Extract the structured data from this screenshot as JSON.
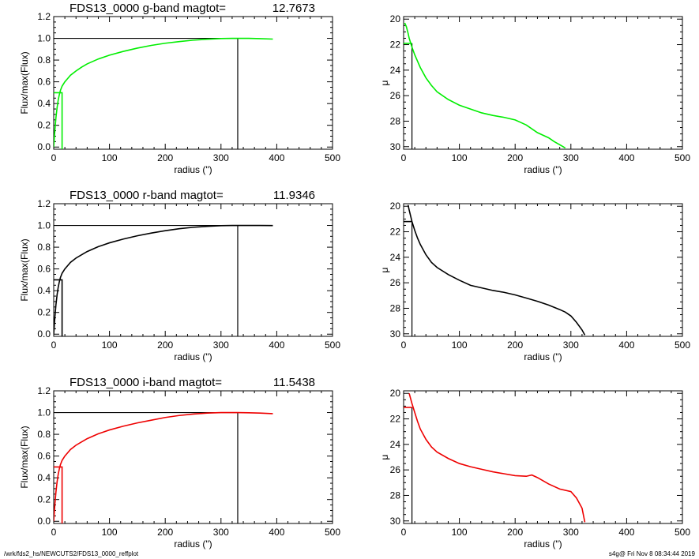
{
  "footer": {
    "left": "/wrk/fds2_hs/NEWCUTS2/FDS13_0000_reffplot",
    "right": "s4g@  Fri Nov  8 08:34:44 2019"
  },
  "chart_data": [
    {
      "type": "line",
      "title": "FDS13_0000 g-band  magtot=",
      "title_value": "12.7673",
      "xlabel": "radius (\")",
      "ylabel": "Flux/max(Flux)",
      "xlim": [
        0,
        500
      ],
      "ylim": [
        -0.02,
        1.2
      ],
      "xticks": [
        0,
        100,
        200,
        300,
        400,
        500
      ],
      "yticks": [
        0.0,
        0.2,
        0.4,
        0.6,
        0.8,
        1.0,
        1.2
      ],
      "color": "#00ee00",
      "x": [
        0,
        2,
        4,
        6,
        8,
        10,
        12,
        15,
        20,
        25,
        30,
        40,
        50,
        60,
        80,
        100,
        125,
        150,
        175,
        200,
        225,
        250,
        275,
        300,
        320,
        330,
        350,
        370,
        393
      ],
      "y": [
        0,
        0.15,
        0.27,
        0.36,
        0.43,
        0.48,
        0.52,
        0.56,
        0.6,
        0.63,
        0.66,
        0.7,
        0.735,
        0.765,
        0.81,
        0.845,
        0.88,
        0.91,
        0.935,
        0.955,
        0.97,
        0.983,
        0.992,
        0.998,
        1.0,
        1.0,
        1.0,
        0.997,
        0.993
      ],
      "half_light_radius": 15,
      "total_radius": 330
    },
    {
      "type": "line",
      "xlabel": "radius (\")",
      "ylabel": "μ",
      "xlim": [
        0,
        500
      ],
      "ylim": [
        30.2,
        19.8
      ],
      "ylog": false,
      "xticks": [
        0,
        100,
        200,
        300,
        400,
        500
      ],
      "yticks": [
        20,
        22,
        24,
        26,
        28,
        30
      ],
      "color": "#00ee00",
      "x": [
        2,
        5,
        8,
        10,
        15,
        20,
        25,
        30,
        40,
        50,
        60,
        80,
        100,
        120,
        140,
        160,
        180,
        200,
        210,
        220,
        230,
        240,
        250,
        260,
        270,
        280,
        290
      ],
      "y": [
        20.3,
        20.6,
        21.1,
        21.5,
        22.2,
        22.8,
        23.3,
        23.8,
        24.6,
        25.2,
        25.7,
        26.3,
        26.75,
        27.05,
        27.35,
        27.55,
        27.7,
        27.9,
        28.1,
        28.3,
        28.6,
        28.9,
        29.1,
        29.3,
        29.6,
        29.85,
        30.1
      ],
      "marker_radius": 15,
      "marker_mu": 21.9
    },
    {
      "type": "line",
      "title": "FDS13_0000 r-band  magtot=",
      "title_value": "11.9346",
      "xlabel": "radius (\")",
      "ylabel": "Flux/max(Flux)",
      "xlim": [
        0,
        500
      ],
      "ylim": [
        -0.02,
        1.2
      ],
      "xticks": [
        0,
        100,
        200,
        300,
        400,
        500
      ],
      "yticks": [
        0.0,
        0.2,
        0.4,
        0.6,
        0.8,
        1.0,
        1.2
      ],
      "color": "#000000",
      "x": [
        0,
        2,
        4,
        6,
        8,
        10,
        12,
        15,
        20,
        25,
        30,
        40,
        50,
        60,
        80,
        100,
        125,
        150,
        175,
        200,
        225,
        250,
        275,
        300,
        320,
        330,
        350,
        370,
        393
      ],
      "y": [
        0,
        0.15,
        0.27,
        0.36,
        0.43,
        0.48,
        0.52,
        0.56,
        0.6,
        0.63,
        0.66,
        0.7,
        0.73,
        0.76,
        0.805,
        0.84,
        0.875,
        0.905,
        0.93,
        0.952,
        0.97,
        0.983,
        0.992,
        0.998,
        1.0,
        1.0,
        1.0,
        1.0,
        0.999
      ],
      "half_light_radius": 15,
      "total_radius": 330
    },
    {
      "type": "line",
      "xlabel": "radius (\")",
      "ylabel": "μ",
      "xlim": [
        0,
        500
      ],
      "ylim": [
        30.2,
        19.8
      ],
      "xticks": [
        0,
        100,
        200,
        300,
        400,
        500
      ],
      "yticks": [
        20,
        22,
        24,
        26,
        28,
        30
      ],
      "color": "#000000",
      "x": [
        8,
        10,
        15,
        20,
        25,
        30,
        40,
        50,
        60,
        80,
        100,
        120,
        140,
        160,
        180,
        200,
        220,
        240,
        260,
        280,
        290,
        300,
        310,
        320,
        325
      ],
      "y": [
        19.9,
        20.3,
        21.2,
        21.9,
        22.5,
        23.0,
        23.8,
        24.4,
        24.8,
        25.35,
        25.8,
        26.2,
        26.4,
        26.6,
        26.75,
        26.95,
        27.2,
        27.45,
        27.75,
        28.1,
        28.3,
        28.6,
        29.1,
        29.7,
        30.1
      ],
      "marker_radius": 15,
      "marker_mu": 21.2
    },
    {
      "type": "line",
      "title": "FDS13_0000 i-band  magtot=",
      "title_value": "11.5438",
      "xlabel": "radius (\")",
      "ylabel": "Flux/max(Flux)",
      "xlim": [
        0,
        500
      ],
      "ylim": [
        -0.02,
        1.2
      ],
      "xticks": [
        0,
        100,
        200,
        300,
        400,
        500
      ],
      "yticks": [
        0.0,
        0.2,
        0.4,
        0.6,
        0.8,
        1.0,
        1.2
      ],
      "color": "#ee0000",
      "x": [
        0,
        2,
        4,
        6,
        8,
        10,
        12,
        15,
        20,
        25,
        30,
        40,
        50,
        60,
        80,
        100,
        125,
        150,
        175,
        200,
        225,
        250,
        275,
        300,
        320,
        330,
        350,
        370,
        393
      ],
      "y": [
        0,
        0.15,
        0.27,
        0.36,
        0.43,
        0.48,
        0.52,
        0.56,
        0.6,
        0.63,
        0.66,
        0.7,
        0.73,
        0.76,
        0.805,
        0.84,
        0.875,
        0.905,
        0.93,
        0.955,
        0.973,
        0.986,
        0.995,
        1.0,
        1.0,
        1.0,
        0.998,
        0.995,
        0.99
      ],
      "half_light_radius": 15,
      "total_radius": 330
    },
    {
      "type": "line",
      "xlabel": "radius (\")",
      "ylabel": "μ",
      "xlim": [
        0,
        500
      ],
      "ylim": [
        30.2,
        19.8
      ],
      "xticks": [
        0,
        100,
        200,
        300,
        400,
        500
      ],
      "yticks": [
        20,
        22,
        24,
        26,
        28,
        30
      ],
      "color": "#ee0000",
      "x": [
        10,
        15,
        20,
        25,
        30,
        40,
        50,
        60,
        80,
        100,
        120,
        140,
        160,
        180,
        200,
        220,
        230,
        240,
        260,
        280,
        300,
        310,
        320,
        325
      ],
      "y": [
        20.0,
        20.8,
        21.5,
        22.2,
        22.8,
        23.6,
        24.2,
        24.6,
        25.1,
        25.5,
        25.75,
        25.95,
        26.15,
        26.3,
        26.45,
        26.5,
        26.4,
        26.6,
        27.1,
        27.5,
        27.7,
        28.2,
        29.0,
        30.1
      ],
      "marker_radius": 15,
      "marker_mu": 21.1
    }
  ]
}
